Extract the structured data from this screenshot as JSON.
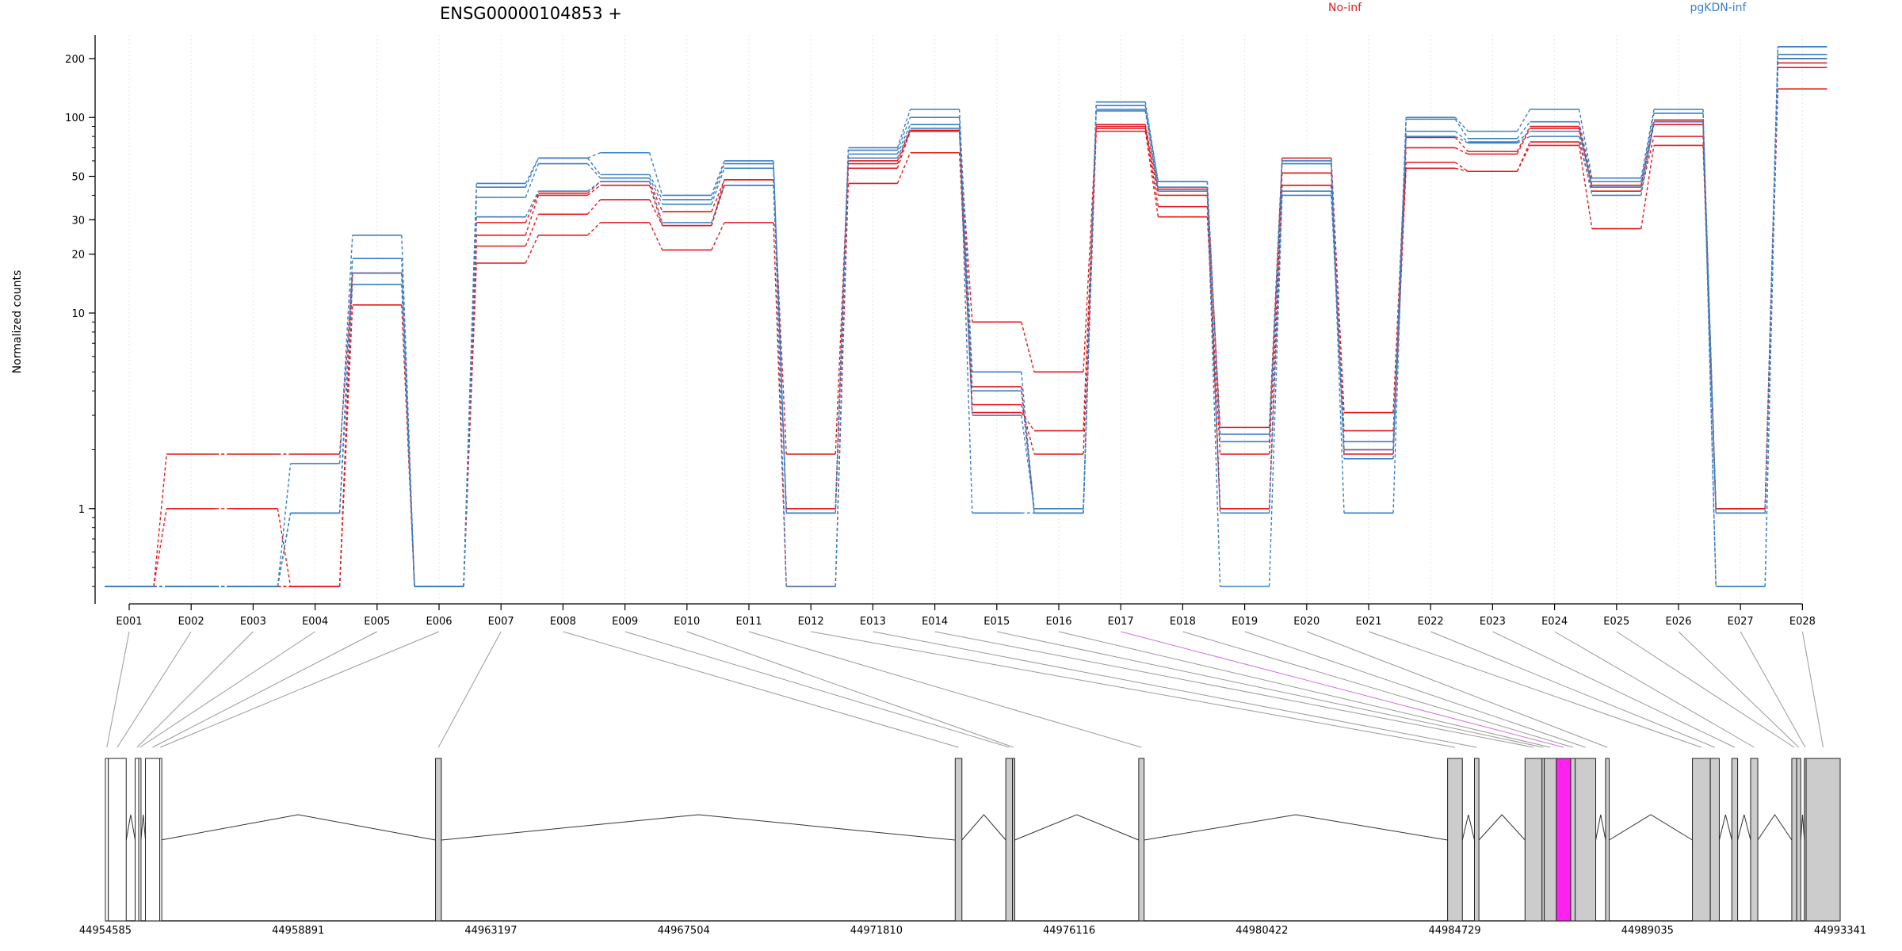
{
  "chart_data": {
    "type": "line",
    "title": "ENSG00000104853 +",
    "ylabel": "Normalized counts",
    "y_scale": "log",
    "ylim": [
      0.4,
      250
    ],
    "y_ticks": [
      1,
      10,
      20,
      30,
      50,
      100,
      200
    ],
    "grid": "vertical dotted at exon centers",
    "legend": [
      {
        "name": "No-inf",
        "color": "#e31a1c",
        "position": "top-center"
      },
      {
        "name": "pgKDN-inf",
        "color": "#3a7fc4",
        "position": "top-right"
      }
    ],
    "categories": [
      "E001",
      "E002",
      "E003",
      "E004",
      "E005",
      "E006",
      "E007",
      "E008",
      "E009",
      "E010",
      "E011",
      "E012",
      "E013",
      "E014",
      "E015",
      "E016",
      "E017",
      "E018",
      "E019",
      "E020",
      "E021",
      "E022",
      "E023",
      "E024",
      "E025",
      "E026",
      "E027",
      "E028"
    ],
    "series": [
      {
        "group": "No-inf",
        "values": [
          0.4,
          1.9,
          1.9,
          1.9,
          16,
          0.4,
          29,
          41,
          47,
          33,
          48,
          1.9,
          60,
          86,
          3.1,
          2.5,
          92,
          43,
          2.6,
          62,
          3.1,
          79,
          67,
          90,
          45,
          97,
          1.0,
          200
        ]
      },
      {
        "group": "No-inf",
        "values": [
          0.4,
          1.0,
          1.0,
          0.4,
          11,
          0.4,
          25,
          40,
          45,
          28,
          45,
          1.0,
          55,
          85,
          4.2,
          1.0,
          88,
          40,
          1.0,
          52,
          1.9,
          70,
          65,
          88,
          44,
          92,
          1.0,
          190
        ]
      },
      {
        "group": "No-inf",
        "values": [
          0.4,
          0.4,
          0.4,
          0.4,
          16,
          0.4,
          18,
          25,
          29,
          21,
          29,
          0.4,
          46,
          66,
          3.4,
          1.9,
          85,
          31,
          1.9,
          45,
          2.5,
          59,
          53,
          75,
          42,
          80,
          1.0,
          180
        ]
      },
      {
        "group": "No-inf",
        "values": [
          0.4,
          0.4,
          0.4,
          0.4,
          16,
          0.4,
          22,
          32,
          38,
          28,
          48,
          1.0,
          58,
          85,
          9.0,
          5.0,
          90,
          35,
          1.0,
          45,
          2.0,
          55,
          53,
          72,
          27,
          72,
          1.0,
          140
        ]
      },
      {
        "group": "pgKDN-inf",
        "values": [
          0.4,
          0.4,
          0.4,
          1.7,
          25,
          0.4,
          46,
          62,
          66,
          40,
          60,
          0.95,
          70,
          110,
          5.0,
          0.95,
          120,
          47,
          2.4,
          58,
          1.8,
          100,
          85,
          110,
          49,
          110,
          0.4,
          230
        ]
      },
      {
        "group": "pgKDN-inf",
        "values": [
          0.4,
          0.4,
          0.4,
          0.95,
          19,
          0.4,
          44,
          62,
          51,
          38,
          58,
          0.95,
          68,
          100,
          0.95,
          0.95,
          115,
          47,
          2.2,
          60,
          0.95,
          98,
          78,
          95,
          47,
          105,
          0.95,
          230
        ]
      },
      {
        "group": "pgKDN-inf",
        "values": [
          0.4,
          0.4,
          0.4,
          0.95,
          16,
          0.4,
          39,
          58,
          49,
          36,
          55,
          0.4,
          65,
          92,
          4.0,
          0.95,
          110,
          44,
          0.95,
          42,
          2.2,
          85,
          75,
          85,
          44,
          95,
          0.95,
          210
        ]
      },
      {
        "group": "pgKDN-inf",
        "values": [
          0.4,
          0.4,
          0.4,
          0.95,
          14,
          0.4,
          31,
          42,
          47,
          29,
          45,
          0.95,
          62,
          88,
          3.0,
          1.0,
          108,
          42,
          0.4,
          40,
          2.0,
          80,
          74,
          80,
          40,
          95,
          0.4,
          200
        ]
      }
    ],
    "gene_model": {
      "coordinate_ticks": [
        "44954585",
        "44958891",
        "44963197",
        "44967504",
        "44971810",
        "44976116",
        "44980422",
        "44984729",
        "44989035",
        "44993341"
      ],
      "coordinate_range": [
        44954585,
        44993341
      ],
      "exons": [
        {
          "id": "E001",
          "start": 44954585,
          "end": 44954650
        },
        {
          "id": "E002",
          "start": 44954650,
          "end": 44955050
        },
        {
          "id": "E003",
          "start": 44955250,
          "end": 44955330
        },
        {
          "id": "E004",
          "start": 44955330,
          "end": 44955380
        },
        {
          "id": "E005",
          "start": 44955480,
          "end": 44955800
        },
        {
          "id": "E006",
          "start": 44955800,
          "end": 44955820
        },
        {
          "id": "E007",
          "start": 44961960,
          "end": 44962090
        },
        {
          "id": "E008",
          "start": 44973570,
          "end": 44973720
        },
        {
          "id": "E009",
          "start": 44974700,
          "end": 44974850
        },
        {
          "id": "E010",
          "start": 44974850,
          "end": 44974900
        },
        {
          "id": "E011",
          "start": 44977670,
          "end": 44977790
        },
        {
          "id": "E012",
          "start": 44984570,
          "end": 44984900
        },
        {
          "id": "E013",
          "start": 44985170,
          "end": 44985270
        },
        {
          "id": "E014",
          "start": 44986300,
          "end": 44986680
        },
        {
          "id": "E015",
          "start": 44986680,
          "end": 44986730
        },
        {
          "id": "E016",
          "start": 44986730,
          "end": 44987000
        },
        {
          "id": "E017",
          "start": 44987000,
          "end": 44987320,
          "highlight": true
        },
        {
          "id": "E018",
          "start": 44987320,
          "end": 44987420
        },
        {
          "id": "E019",
          "start": 44987420,
          "end": 44987880
        },
        {
          "id": "E020",
          "start": 44988100,
          "end": 44988180
        },
        {
          "id": "E021",
          "start": 44990040,
          "end": 44990440
        },
        {
          "id": "E022",
          "start": 44990440,
          "end": 44990640
        },
        {
          "id": "E023",
          "start": 44990920,
          "end": 44991050
        },
        {
          "id": "E024",
          "start": 44991340,
          "end": 44991500
        },
        {
          "id": "E025",
          "start": 44992260,
          "end": 44992370
        },
        {
          "id": "E026",
          "start": 44992370,
          "end": 44992460
        },
        {
          "id": "E027",
          "start": 44992540,
          "end": 44992580
        },
        {
          "id": "E028",
          "start": 44992580,
          "end": 44993341
        }
      ]
    }
  },
  "colors": {
    "no_inf": "#e31a1c",
    "pgkdn_inf": "#3a7fc4",
    "highlight_exon": "#ff22ee",
    "exon_fill": "#cccccc"
  }
}
